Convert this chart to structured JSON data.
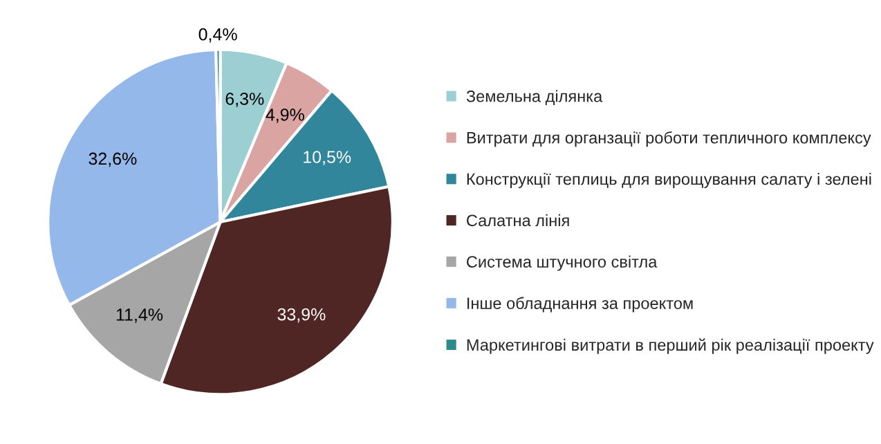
{
  "chart_data": {
    "type": "pie",
    "categories": [
      "Земельна ділянка",
      "Витрати для органзації роботи тепличного комплексу",
      "Конструкції теплиць для вирощування салату і зелені",
      "Салатна лінія",
      "Система штучного світла",
      "Інше обладнання за проектом",
      "Маркетингові витрати в перший рік реалізації проекту"
    ],
    "values": [
      6.3,
      4.9,
      10.5,
      33.9,
      11.4,
      32.6,
      0.4
    ],
    "value_labels": [
      "6,3%",
      "4,9%",
      "10,5%",
      "33,9%",
      "11,4%",
      "32,6%",
      "0,4%"
    ],
    "colors": [
      "#9bcfd2",
      "#d9a4a2",
      "#31869b",
      "#4f2623",
      "#a6a6a6",
      "#95b8ea",
      "#2f8a8a"
    ],
    "legend": "right"
  }
}
